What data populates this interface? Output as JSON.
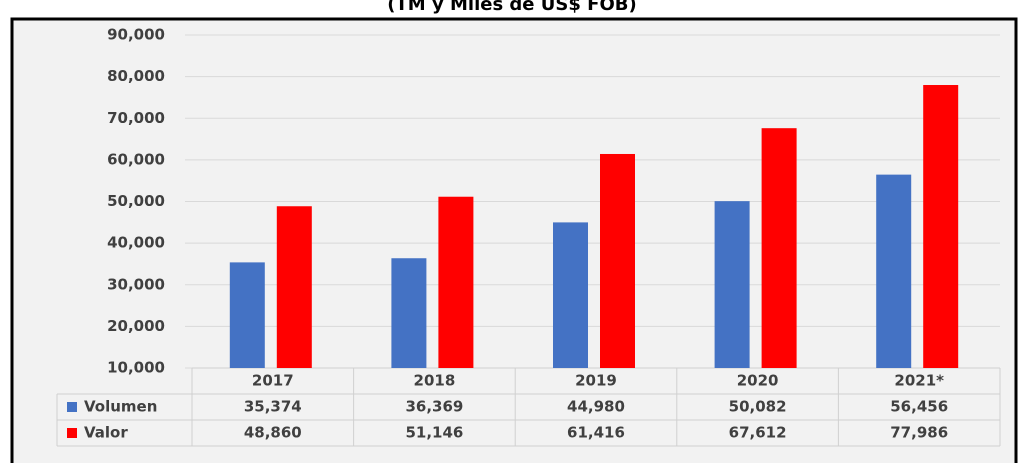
{
  "chart_data": {
    "type": "bar",
    "title": "(TM y Miles de US$ FOB)",
    "categories": [
      "2017",
      "2018",
      "2019",
      "2020",
      "2021*"
    ],
    "series": [
      {
        "name": "Volumen",
        "color": "#4472c4",
        "values": [
          35374,
          36369,
          44980,
          50082,
          56456
        ],
        "value_labels": [
          "35,374",
          "36,369",
          "44,980",
          "50,082",
          "56,456"
        ]
      },
      {
        "name": "Valor",
        "color": "#ff0000",
        "values": [
          48860,
          51146,
          61416,
          67612,
          77986
        ],
        "value_labels": [
          "48,860",
          "51,146",
          "61,416",
          "67,612",
          "77,986"
        ]
      }
    ],
    "ylim": [
      10000,
      90000
    ],
    "yticks": [
      {
        "value": 10000,
        "label": "10,000"
      },
      {
        "value": 20000,
        "label": "20,000"
      },
      {
        "value": 30000,
        "label": "30,000"
      },
      {
        "value": 40000,
        "label": "40,000"
      },
      {
        "value": 50000,
        "label": "50,000"
      },
      {
        "value": 60000,
        "label": "60,000"
      },
      {
        "value": 70000,
        "label": "70,000"
      },
      {
        "value": 80000,
        "label": "80,000"
      },
      {
        "value": 90000,
        "label": "90,000"
      }
    ],
    "grid": true
  }
}
